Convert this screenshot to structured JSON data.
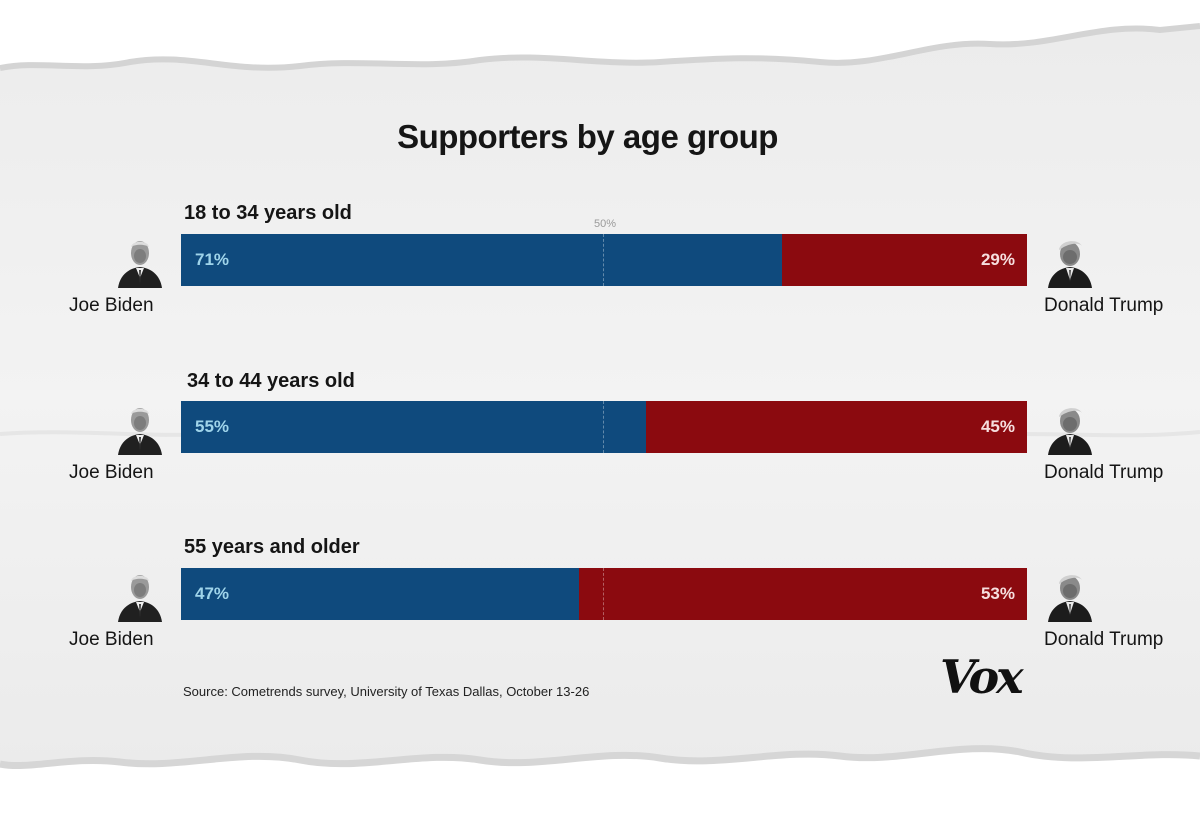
{
  "chart_data": {
    "type": "bar",
    "orientation": "horizontal-stacked",
    "title": "Supporters by age group",
    "midpoint_label": "50%",
    "series_colors": {
      "biden": "#0f4a7d",
      "trump": "#8b0a0f"
    },
    "label_colors": {
      "biden": "#9fd4ea",
      "trump": "#f6dede"
    },
    "groups": [
      {
        "label": "18 to 34 years old",
        "biden_value": 71,
        "trump_value": 29,
        "biden_text": "71%",
        "trump_text": "29%"
      },
      {
        "label": "34 to 44 years old",
        "biden_value": 55,
        "trump_value": 45,
        "biden_text": "55%",
        "trump_text": "45%"
      },
      {
        "label": "55 years and older",
        "biden_value": 47,
        "trump_value": 53,
        "biden_text": "47%",
        "trump_text": "53%"
      }
    ]
  },
  "candidates": {
    "left": {
      "name": "Joe Biden",
      "icon": "biden-portrait-icon"
    },
    "right": {
      "name": "Donald Trump",
      "icon": "trump-portrait-icon"
    }
  },
  "footer": {
    "source": "Source: Cometrends survey, University of Texas Dallas, October 13-26",
    "brand": "Vox"
  }
}
